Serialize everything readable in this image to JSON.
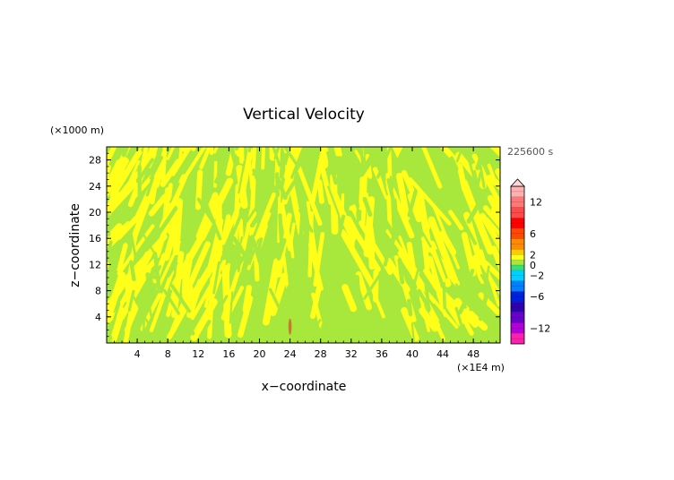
{
  "chart_data": {
    "type": "heatmap",
    "title": "Vertical Velocity",
    "xlabel": "x−coordinate",
    "ylabel": "z−coordinate",
    "x_unit": "(×1E4 m)",
    "y_unit": "(×1000 m)",
    "time_label": "225600 s",
    "xlim": [
      0,
      51.5
    ],
    "ylim": [
      0,
      30
    ],
    "x_ticks": [
      4,
      8,
      12,
      16,
      20,
      24,
      28,
      32,
      36,
      40,
      44,
      48
    ],
    "y_ticks": [
      4,
      8,
      12,
      16,
      20,
      24,
      28
    ],
    "colorbar": {
      "labels": [
        "12",
        "6",
        "2",
        "0",
        "−2",
        "−6",
        "−12"
      ],
      "label_values": [
        12,
        6,
        2,
        0,
        -2,
        -6,
        -12
      ],
      "range": [
        -15,
        15
      ],
      "extend": "max",
      "colors": [
        {
          "from": -15,
          "to": -13,
          "color": "#ff1fae"
        },
        {
          "from": -13,
          "to": -11,
          "color": "#b300d9"
        },
        {
          "from": -11,
          "to": -9,
          "color": "#6a00cc"
        },
        {
          "from": -9,
          "to": -7,
          "color": "#2d00b0"
        },
        {
          "from": -7,
          "to": -5,
          "color": "#0020e0"
        },
        {
          "from": -5,
          "to": -3,
          "color": "#0080ff"
        },
        {
          "from": -3,
          "to": -1,
          "color": "#00d0ff"
        },
        {
          "from": -1,
          "to": 0,
          "color": "#33e07a"
        },
        {
          "from": 0,
          "to": 1,
          "color": "#a8e83c"
        },
        {
          "from": 1,
          "to": 2,
          "color": "#ffff1a"
        },
        {
          "from": 2,
          "to": 3,
          "color": "#ffcc00"
        },
        {
          "from": 3,
          "to": 5,
          "color": "#ff8c00"
        },
        {
          "from": 5,
          "to": 7,
          "color": "#ff4800"
        },
        {
          "from": 7,
          "to": 9,
          "color": "#ff0000"
        },
        {
          "from": 9,
          "to": 11,
          "color": "#ff4a4a"
        },
        {
          "from": 11,
          "to": 13,
          "color": "#ff7878"
        },
        {
          "from": 13,
          "to": 15,
          "color": "#ffb0b0"
        }
      ]
    },
    "field": {
      "dominant_colors": [
        "#a8e83c",
        "#ffff1a"
      ],
      "pattern": "alternating tilted stripes of values between 0 and 2 m/s, fanning outward from x=24",
      "anomaly": {
        "x": 24,
        "z": 2.5,
        "color": "#c87830"
      }
    }
  }
}
